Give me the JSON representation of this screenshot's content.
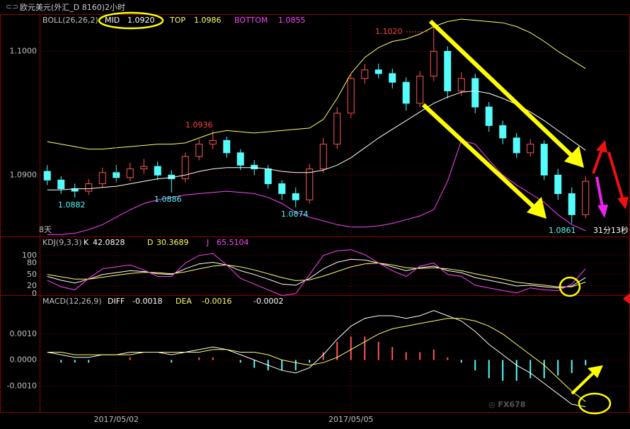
{
  "chart_data": [
    {
      "type": "candlestick",
      "title": "欧元美元(外汇_D 8160)2小时",
      "indicator": "BOLL(26,26,2)",
      "categories": [
        null,
        null,
        null,
        null,
        null,
        "2017/05/02",
        null,
        null,
        null,
        null,
        null,
        null,
        null,
        null,
        null,
        null,
        null,
        null,
        null,
        null,
        null,
        null,
        "2017/05/05",
        null,
        null,
        null,
        null,
        null,
        null,
        null,
        null,
        null,
        null,
        null,
        null,
        null,
        null,
        null,
        null,
        null
      ],
      "open": [
        1.0903,
        1.0896,
        1.0889,
        1.0887,
        1.0893,
        1.0902,
        1.0898,
        1.0905,
        1.0907,
        1.09,
        1.0897,
        1.0915,
        1.0925,
        1.0928,
        1.0918,
        1.0908,
        1.0905,
        1.0893,
        1.0885,
        1.088,
        1.0905,
        1.0925,
        1.095,
        1.0978,
        1.0985,
        1.0982,
        1.0975,
        1.0958,
        1.098,
        1.1,
        1.0968,
        1.0978,
        1.0955,
        1.094,
        1.093,
        1.0918,
        1.0925,
        1.09,
        1.0885,
        1.0868
      ],
      "high": [
        1.0908,
        1.0899,
        1.0893,
        1.0897,
        1.0906,
        1.0908,
        1.091,
        1.0913,
        1.0911,
        1.0904,
        1.0918,
        1.0929,
        1.0936,
        1.0931,
        1.0921,
        1.0912,
        1.0908,
        1.0896,
        1.089,
        1.0909,
        1.093,
        1.0955,
        1.0982,
        1.099,
        1.099,
        1.0986,
        1.0979,
        1.0984,
        1.102,
        1.1004,
        1.0983,
        1.0982,
        1.0959,
        1.0944,
        1.0934,
        1.0929,
        1.0928,
        1.0905,
        1.089,
        1.0899
      ],
      "low": [
        1.0892,
        1.0885,
        1.0882,
        1.0884,
        1.089,
        1.0894,
        1.0895,
        1.0901,
        1.0896,
        1.0886,
        1.0894,
        1.0912,
        1.0921,
        1.0914,
        1.0904,
        1.09,
        1.0889,
        1.088,
        1.0874,
        1.0877,
        1.0902,
        1.0921,
        1.0946,
        1.0974,
        1.0978,
        1.097,
        1.0952,
        1.0955,
        1.0976,
        1.0962,
        1.0964,
        1.095,
        1.0935,
        1.0925,
        1.0914,
        1.0915,
        1.0896,
        1.088,
        1.0861,
        1.0865
      ],
      "close": [
        1.0896,
        1.0889,
        1.0887,
        1.0893,
        1.0902,
        1.0898,
        1.0905,
        1.0907,
        1.09,
        1.0897,
        1.0915,
        1.0925,
        1.0928,
        1.0918,
        1.0908,
        1.0905,
        1.0893,
        1.0885,
        1.088,
        1.0905,
        1.0925,
        1.095,
        1.0978,
        1.0985,
        1.0982,
        1.0975,
        1.0958,
        1.098,
        1.1,
        1.0968,
        1.0978,
        1.0955,
        1.094,
        1.093,
        1.0918,
        1.0925,
        1.09,
        1.0885,
        1.0868,
        1.0895
      ],
      "up_color": "#ff5555",
      "down_color": "#54fcfc",
      "series": [
        {
          "name": "MID",
          "color": "#ffffff",
          "last_label": "1.0920",
          "values": [
            1.0888,
            1.0888,
            1.0889,
            1.0889,
            1.089,
            1.0891,
            1.0893,
            1.0895,
            1.0897,
            1.0898,
            1.09,
            1.0903,
            1.0905,
            1.0906,
            1.0906,
            1.0906,
            1.0905,
            1.0903,
            1.0902,
            1.0902,
            1.0904,
            1.0908,
            1.0914,
            1.0922,
            1.093,
            1.0937,
            1.0944,
            1.0951,
            1.0958,
            1.0963,
            1.0967,
            1.0968,
            1.0966,
            1.0962,
            1.0957,
            1.0951,
            1.0944,
            1.0936,
            1.0928,
            1.092
          ]
        },
        {
          "name": "TOP",
          "color": "#ffff66",
          "last_label": "1.0986",
          "values": [
            1.0927,
            1.0925,
            1.0923,
            1.0921,
            1.0921,
            1.0922,
            1.0923,
            1.0924,
            1.0925,
            1.0925,
            1.0926,
            1.093,
            1.0934,
            1.0936,
            1.0935,
            1.0934,
            1.0935,
            1.0936,
            1.0937,
            1.0938,
            1.0945,
            1.0962,
            1.0982,
            1.0995,
            1.1003,
            1.1008,
            1.101,
            1.1014,
            1.102,
            1.1024,
            1.1026,
            1.1025,
            1.1024,
            1.1023,
            1.102,
            1.1015,
            1.1008,
            1.1,
            1.0993,
            1.0986
          ]
        },
        {
          "name": "BOTTOM",
          "color": "#ff44ff",
          "last_label": "1.0855",
          "values": [
            1.0852,
            1.0852,
            1.0853,
            1.0856,
            1.086,
            1.0866,
            1.0872,
            1.0877,
            1.088,
            1.0882,
            1.0884,
            1.0885,
            1.0886,
            1.0887,
            1.0886,
            1.0885,
            1.0882,
            1.0877,
            1.087,
            1.0866,
            1.0863,
            1.086,
            1.0858,
            1.0858,
            1.0859,
            1.0861,
            1.0864,
            1.0867,
            1.0872,
            1.0895,
            1.0928,
            1.0925,
            1.0912,
            1.09,
            1.0892,
            1.0885,
            1.0878,
            1.0868,
            1.086,
            1.0855
          ]
        }
      ],
      "ylim": [
        1.0851,
        1.103
      ],
      "yticks": [
        {
          "value": 1.09,
          "label": "1.0900"
        },
        {
          "value": 1.1,
          "label": "1.1000"
        }
      ],
      "grid": true,
      "annotations": [
        "1.1020",
        "1.0936",
        "1.0882",
        "1.0886",
        "1.0874",
        "1.0861",
        "8天",
        "31分13秒"
      ]
    },
    {
      "type": "line",
      "indicator": "KDJ(9,3,3)",
      "series": [
        {
          "name": "K",
          "color": "#ffffff",
          "last_label": "42.0828",
          "values": [
            45,
            35,
            28,
            38,
            50,
            55,
            60,
            58,
            52,
            50,
            65,
            78,
            82,
            75,
            60,
            50,
            38,
            25,
            22,
            40,
            65,
            82,
            90,
            88,
            80,
            70,
            60,
            68,
            72,
            60,
            55,
            42,
            35,
            28,
            20,
            22,
            18,
            15,
            20,
            42.0828
          ]
        },
        {
          "name": "D",
          "color": "#ffff66",
          "last_label": "30.3689",
          "values": [
            50,
            44,
            38,
            38,
            43,
            48,
            53,
            56,
            55,
            52,
            57,
            65,
            72,
            75,
            70,
            62,
            52,
            42,
            34,
            36,
            46,
            58,
            70,
            78,
            80,
            75,
            68,
            66,
            68,
            65,
            60,
            52,
            45,
            38,
            30,
            26,
            22,
            18,
            18,
            30.3689
          ]
        },
        {
          "name": "J",
          "color": "#ff44ff",
          "last_label": "65.5104",
          "values": [
            35,
            18,
            10,
            40,
            65,
            70,
            75,
            62,
            45,
            45,
            80,
            100,
            105,
            75,
            40,
            25,
            10,
            -5,
            0,
            50,
            100,
            112,
            115,
            102,
            80,
            60,
            45,
            72,
            80,
            50,
            45,
            22,
            15,
            8,
            2,
            15,
            10,
            8,
            25,
            65.5104
          ]
        }
      ],
      "ylim": [
        -5,
        120
      ],
      "yticks": [
        0,
        20,
        50,
        80,
        100
      ],
      "grid": true
    },
    {
      "type": "macd",
      "indicator": "MACD(12,26,9)",
      "series": [
        {
          "name": "DIFF",
          "color": "#ffffff",
          "last_label": "-0.0018",
          "values": [
            0.0003,
            0.0002,
            0.0001,
            0.0001,
            0.0002,
            0.0002,
            0.0003,
            0.0003,
            0.0003,
            0.0002,
            0.0003,
            0.0004,
            0.0005,
            0.0004,
            0.0002,
            0.0,
            -0.0002,
            -0.0004,
            -0.0005,
            -0.0003,
            0.0002,
            0.0008,
            0.0013,
            0.0016,
            0.0017,
            0.0017,
            0.0016,
            0.0017,
            0.0019,
            0.0017,
            0.0015,
            0.0011,
            0.0006,
            0.0002,
            -0.0002,
            -0.0005,
            -0.0009,
            -0.0013,
            -0.0017,
            -0.0018
          ]
        },
        {
          "name": "DEA",
          "color": "#ffff66",
          "last_label": "-0.0016",
          "values": [
            0.0003,
            0.0003,
            0.0002,
            0.0002,
            0.0002,
            0.0002,
            0.0002,
            0.0003,
            0.0003,
            0.0003,
            0.0003,
            0.0003,
            0.0004,
            0.0004,
            0.0003,
            0.0003,
            0.0002,
            0.0,
            -0.0001,
            -0.0002,
            -0.0001,
            0.0001,
            0.0004,
            0.0007,
            0.001,
            0.0012,
            0.0013,
            0.0014,
            0.0015,
            0.0016,
            0.0016,
            0.0015,
            0.0013,
            0.001,
            0.0006,
            0.0002,
            -0.0002,
            -0.0007,
            -0.0012,
            -0.0016
          ]
        }
      ],
      "histogram": {
        "up_color": "#ff5555",
        "down_color": "#54fcfc",
        "last_label": "-0.0002",
        "values": [
          0,
          -0.0001,
          -0.0001,
          -0.0001,
          0,
          0,
          0.0001,
          0,
          0,
          -0.0001,
          0,
          0.0001,
          0.0001,
          0,
          -0.0001,
          -0.0003,
          -0.0004,
          -0.0004,
          -0.0004,
          -0.0001,
          0.0003,
          0.0007,
          0.0009,
          0.0009,
          0.0007,
          0.0005,
          0.0003,
          0.0003,
          0.0004,
          0.0001,
          -0.0001,
          -0.0004,
          -0.0007,
          -0.0008,
          -0.0008,
          -0.0007,
          -0.0007,
          -0.0006,
          -0.0005,
          -0.0002
        ]
      },
      "ylim": [
        -0.002,
        0.002
      ],
      "yticks": [
        {
          "value": -0.001,
          "label": "-0.0010"
        },
        {
          "value": 0,
          "label": "0.0000"
        },
        {
          "value": 0.001,
          "label": "0.0010"
        }
      ],
      "grid": true
    }
  ]
}
